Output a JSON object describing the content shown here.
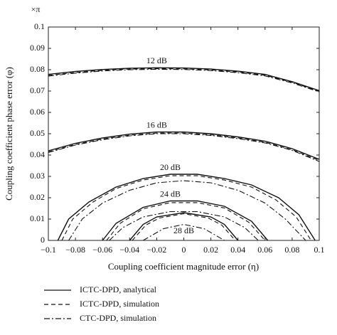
{
  "chart_data": {
    "type": "contour",
    "y_unit_label": "×π",
    "x_label": "Coupling coefficient magnitude error (η)",
    "y_label": "Coupling coefficient phase error (φ)",
    "xlim": [
      -0.1,
      0.1
    ],
    "ylim": [
      0,
      0.1
    ],
    "xticks": [
      {
        "value": -0.1,
        "label": "−0.1"
      },
      {
        "value": -0.08,
        "label": "−0.08"
      },
      {
        "value": -0.06,
        "label": "−0.06"
      },
      {
        "value": -0.04,
        "label": "−0.04"
      },
      {
        "value": -0.02,
        "label": "−0.02"
      },
      0,
      0.02,
      0.04,
      0.06,
      0.08,
      0.1
    ],
    "yticks": [
      0,
      0.01,
      0.02,
      0.03,
      0.04,
      0.05,
      0.06,
      0.07,
      0.08,
      0.09,
      0.1
    ],
    "series": [
      {
        "name": "ICTC-DPD, analytical",
        "color": "#111111",
        "dash": "solid"
      },
      {
        "name": "ICTC-DPD, simulation",
        "color": "#111111",
        "dash": "dashed"
      },
      {
        "name": "CTC-DPD, simulation",
        "color": "#111111",
        "dash": "dashdot"
      }
    ],
    "contours": [
      {
        "label": "12 dB",
        "lines": [
          {
            "x": [
              -0.1,
              -0.08,
              -0.06,
              -0.04,
              -0.02,
              0,
              0.02,
              0.04,
              0.06,
              0.08,
              0.1
            ],
            "y": [
              0.0778,
              0.0792,
              0.0801,
              0.0807,
              0.0809,
              0.0808,
              0.0803,
              0.0793,
              0.0778,
              0.0744,
              0.0702
            ]
          },
          {
            "x": [
              -0.1,
              -0.08,
              -0.06,
              -0.04,
              -0.02,
              0,
              0.02,
              0.04,
              0.06,
              0.08,
              0.1
            ],
            "y": [
              0.0773,
              0.0787,
              0.0797,
              0.0803,
              0.0805,
              0.0804,
              0.0799,
              0.0789,
              0.0774,
              0.0741,
              0.0699
            ]
          },
          {
            "x": [
              -0.1,
              -0.08,
              -0.06,
              -0.04,
              -0.02,
              0,
              0.02,
              0.04,
              0.06,
              0.08,
              0.1
            ],
            "y": [
              0.077,
              0.0784,
              0.0794,
              0.08,
              0.0802,
              0.0801,
              0.0796,
              0.0786,
              0.0771,
              0.0738,
              0.0696
            ]
          }
        ]
      },
      {
        "label": "16 dB",
        "lines": [
          {
            "x": [
              -0.1,
              -0.08,
              -0.06,
              -0.04,
              -0.02,
              0,
              0.02,
              0.04,
              0.06,
              0.08,
              0.1
            ],
            "y": [
              0.042,
              0.0455,
              0.048,
              0.0498,
              0.0508,
              0.0508,
              0.05,
              0.0485,
              0.0465,
              0.043,
              0.038
            ]
          },
          {
            "x": [
              -0.1,
              -0.08,
              -0.06,
              -0.04,
              -0.02,
              0,
              0.02,
              0.04,
              0.06,
              0.08,
              0.1
            ],
            "y": [
              0.0415,
              0.045,
              0.0475,
              0.0493,
              0.0503,
              0.0503,
              0.0495,
              0.048,
              0.046,
              0.0425,
              0.0375
            ]
          },
          {
            "x": [
              -0.1,
              -0.08,
              -0.06,
              -0.04,
              -0.02,
              0,
              0.02,
              0.04,
              0.06,
              0.08,
              0.1
            ],
            "y": [
              0.0412,
              0.0447,
              0.0472,
              0.049,
              0.05,
              0.05,
              0.0492,
              0.0477,
              0.0457,
              0.0422,
              0.037
            ]
          }
        ]
      },
      {
        "label": "20 dB",
        "lines": [
          {
            "x": [
              -0.093,
              -0.085,
              -0.07,
              -0.05,
              -0.03,
              -0.01,
              0.01,
              0.03,
              0.05,
              0.07,
              0.085,
              0.097
            ],
            "y": [
              0,
              0.01,
              0.018,
              0.025,
              0.029,
              0.031,
              0.031,
              0.029,
              0.026,
              0.02,
              0.012,
              0
            ]
          },
          {
            "x": [
              -0.09,
              -0.082,
              -0.067,
              -0.05,
              -0.03,
              -0.01,
              0.01,
              0.03,
              0.05,
              0.068,
              0.083,
              0.094
            ],
            "y": [
              0,
              0.01,
              0.018,
              0.0243,
              0.0283,
              0.0303,
              0.0303,
              0.0283,
              0.025,
              0.019,
              0.011,
              0
            ]
          },
          {
            "x": [
              -0.085,
              -0.075,
              -0.06,
              -0.04,
              -0.02,
              0,
              0.02,
              0.04,
              0.06,
              0.075,
              0.09
            ],
            "y": [
              0,
              0.01,
              0.0175,
              0.0235,
              0.027,
              0.028,
              0.027,
              0.0235,
              0.0175,
              0.01,
              0
            ]
          }
        ]
      },
      {
        "label": "24 dB",
        "lines": [
          {
            "x": [
              -0.06,
              -0.05,
              -0.03,
              -0.01,
              0.01,
              0.03,
              0.05,
              0.062
            ],
            "y": [
              0,
              0.008,
              0.0155,
              0.0185,
              0.0185,
              0.016,
              0.009,
              0
            ]
          },
          {
            "x": [
              -0.057,
              -0.047,
              -0.03,
              -0.01,
              0.01,
              0.03,
              0.048,
              0.06
            ],
            "y": [
              0,
              0.008,
              0.0148,
              0.0177,
              0.0177,
              0.0152,
              0.0085,
              0
            ]
          },
          {
            "x": [
              -0.055,
              -0.045,
              -0.03,
              -0.01,
              0.01,
              0.03,
              0.045,
              0.055
            ],
            "y": [
              0,
              0.006,
              0.011,
              0.0135,
              0.0135,
              0.011,
              0.006,
              0
            ]
          }
        ]
      },
      {
        "label": "28 dB",
        "lines": [
          {
            "x": [
              -0.04,
              -0.03,
              -0.02,
              0,
              0.02,
              0.03,
              0.04
            ],
            "y": [
              0,
              0.0075,
              0.011,
              0.013,
              0.011,
              0.0075,
              0
            ]
          },
          {
            "x": [
              -0.038,
              -0.028,
              -0.018,
              0,
              0.018,
              0.028,
              0.038
            ],
            "y": [
              0,
              0.0072,
              0.0105,
              0.0125,
              0.0105,
              0.0072,
              0
            ]
          },
          {
            "x": [
              -0.03,
              -0.015,
              0,
              0.015,
              0.03
            ],
            "y": [
              0,
              0.0055,
              0.0075,
              0.0055,
              0
            ]
          }
        ]
      }
    ]
  }
}
